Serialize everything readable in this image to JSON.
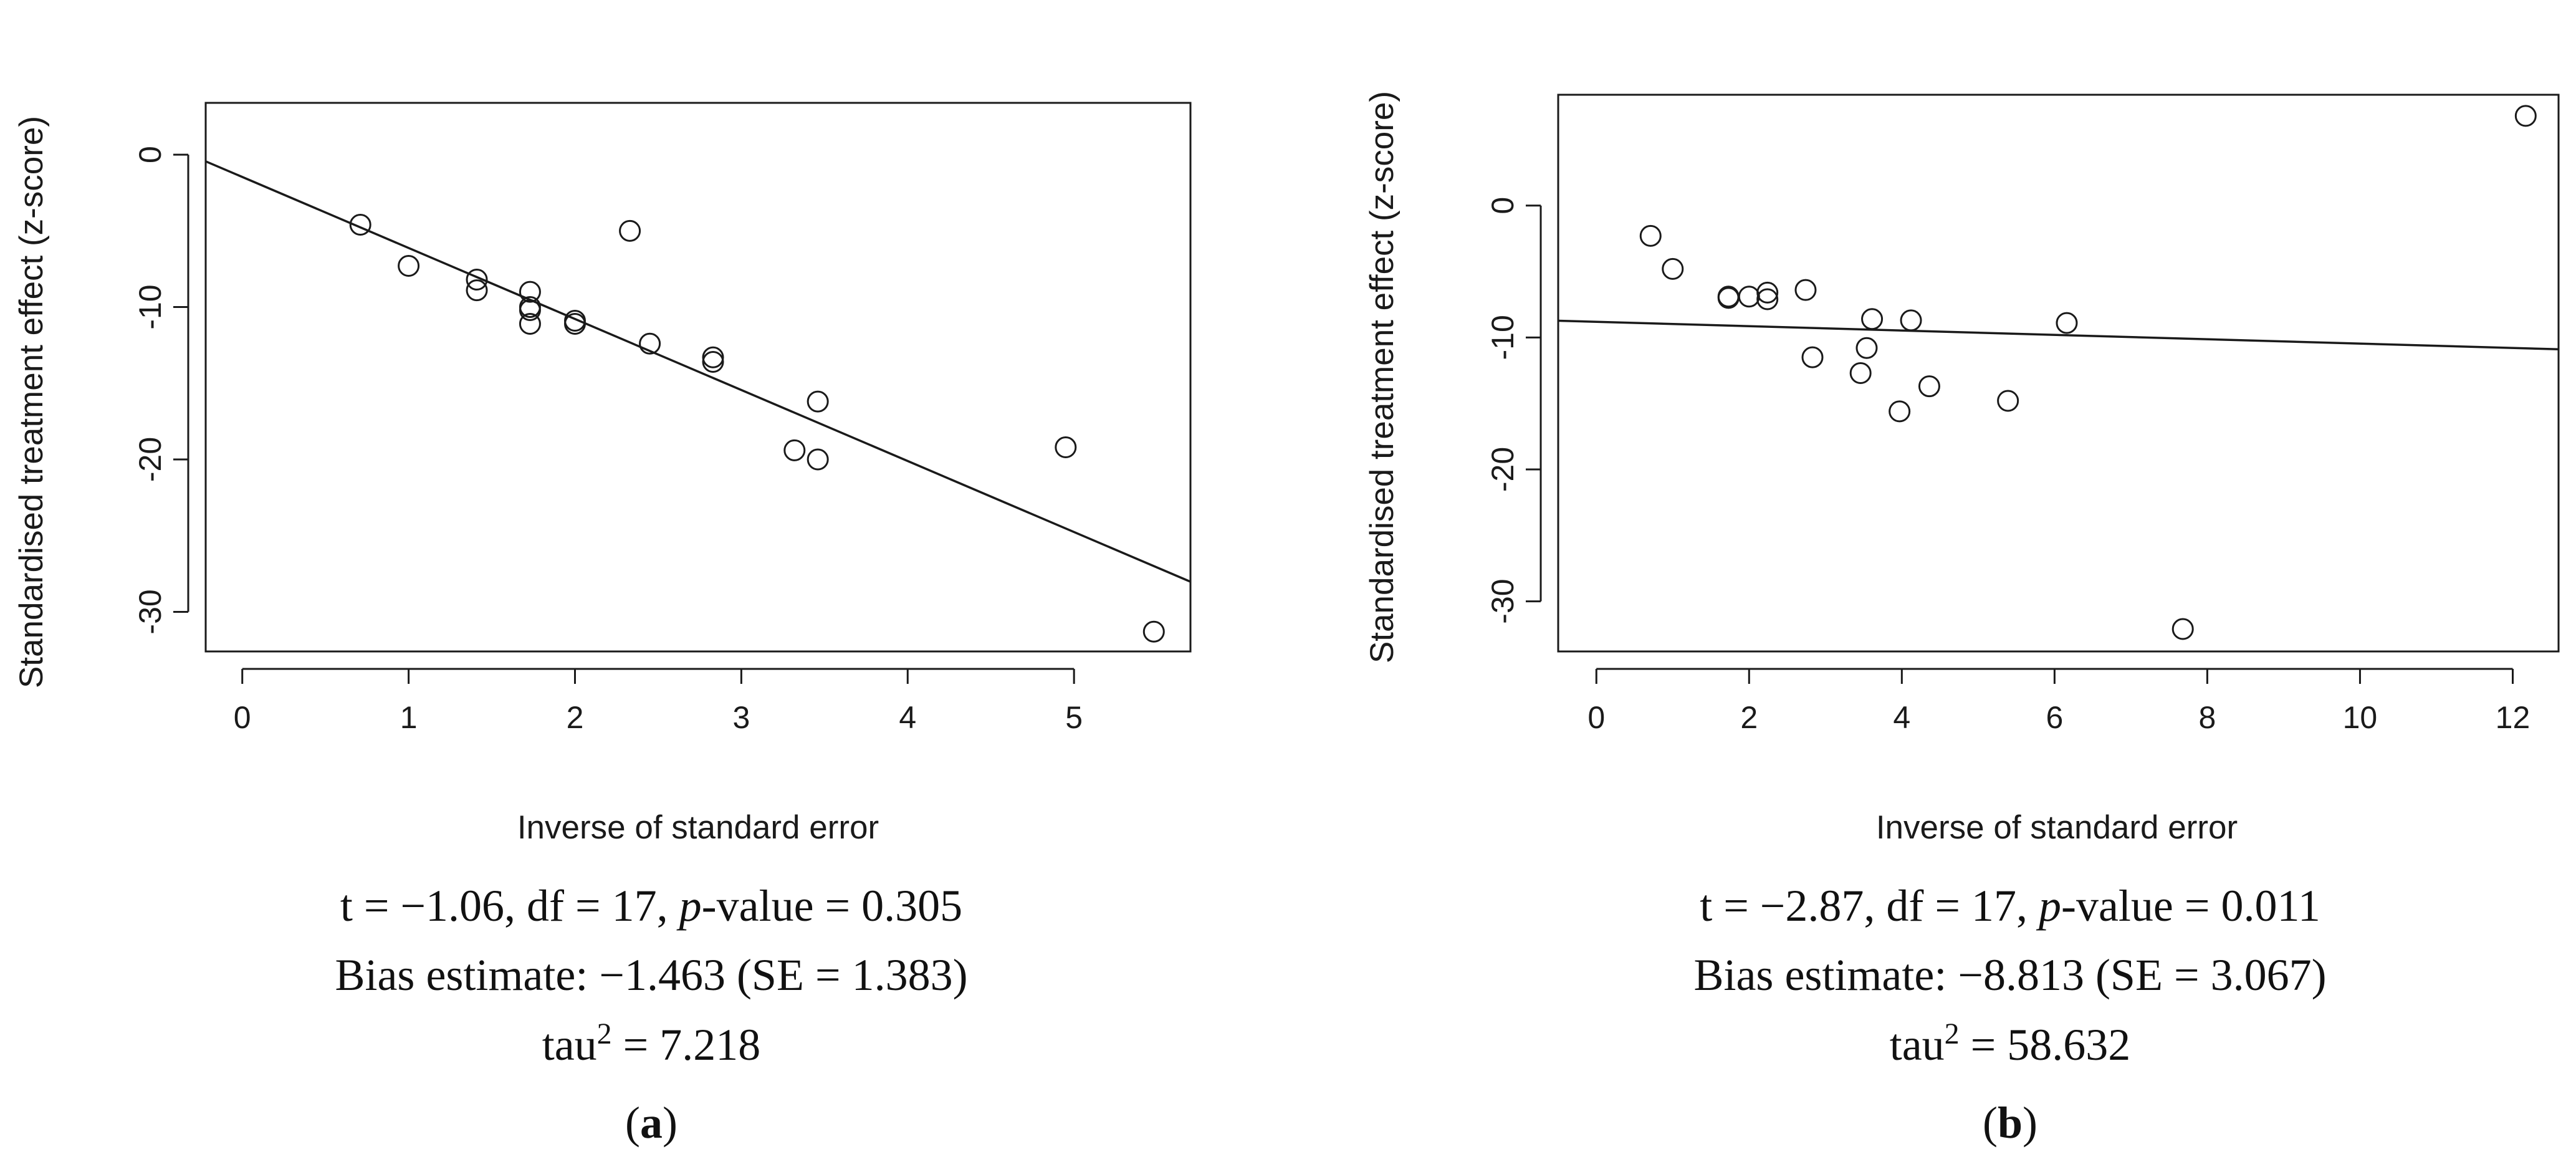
{
  "chart_data": [
    {
      "type": "scatter",
      "title": "",
      "xlabel": "Inverse of standard error",
      "ylabel": "Standardised treatment effect (z-score)",
      "xlim": [
        -0.22,
        5.7
      ],
      "ylim": [
        -32.6,
        3.4
      ],
      "x_ticks": [
        0,
        1,
        2,
        3,
        4,
        5
      ],
      "x_tick_labels": [
        "0",
        "1",
        "2",
        "3",
        "4",
        "5"
      ],
      "y_ticks": [
        0,
        -10,
        -20,
        -30
      ],
      "y_tick_labels": [
        "0",
        "-10",
        "-20",
        "-30"
      ],
      "grid": false,
      "regression_line": {
        "intercept": -1.463,
        "slope": -4.66
      },
      "points": [
        {
          "x": 0.71,
          "y": -4.6
        },
        {
          "x": 1.0,
          "y": -7.3
        },
        {
          "x": 1.41,
          "y": -8.2
        },
        {
          "x": 1.41,
          "y": -8.9
        },
        {
          "x": 1.73,
          "y": -9.0
        },
        {
          "x": 1.73,
          "y": -10.0
        },
        {
          "x": 1.73,
          "y": -10.2
        },
        {
          "x": 1.73,
          "y": -11.1
        },
        {
          "x": 2.0,
          "y": -10.9
        },
        {
          "x": 2.0,
          "y": -11.1
        },
        {
          "x": 2.33,
          "y": -5.0
        },
        {
          "x": 2.45,
          "y": -12.4
        },
        {
          "x": 2.83,
          "y": -13.3
        },
        {
          "x": 2.83,
          "y": -13.6
        },
        {
          "x": 3.32,
          "y": -19.4
        },
        {
          "x": 3.46,
          "y": -16.2
        },
        {
          "x": 3.46,
          "y": -20.0
        },
        {
          "x": 4.95,
          "y": -19.2
        },
        {
          "x": 5.48,
          "y": -31.3
        }
      ],
      "caption": {
        "line1_pre": "t = −1.06, df = 17, ",
        "line1_p": "p",
        "line1_post": "-value = 0.305",
        "line2": "Bias estimate: −1.463 (SE = 1.383)",
        "line3_pre": "tau",
        "line3_sup": "2",
        "line3_post": " = 7.218",
        "panel_label_open": "(",
        "panel_label": "a",
        "panel_label_close": ")"
      }
    },
    {
      "type": "scatter",
      "title": "",
      "xlabel": "Inverse of standard error",
      "ylabel": "Standardised treatment effect (z-score)",
      "xlim": [
        -0.5,
        12.6
      ],
      "ylim": [
        -33.8,
        8.4
      ],
      "x_ticks": [
        0,
        2,
        4,
        6,
        8,
        10,
        12
      ],
      "x_tick_labels": [
        "0",
        "2",
        "4",
        "6",
        "8",
        "10",
        "12"
      ],
      "y_ticks": [
        0,
        -10,
        -20,
        -30
      ],
      "y_tick_labels": [
        "0",
        "-10",
        "-20",
        "-30"
      ],
      "grid": false,
      "regression_line": {
        "intercept": -8.813,
        "slope": -0.165
      },
      "points": [
        {
          "x": 0.71,
          "y": -2.3
        },
        {
          "x": 1.0,
          "y": -4.8
        },
        {
          "x": 1.73,
          "y": -7.0
        },
        {
          "x": 1.73,
          "y": -6.9
        },
        {
          "x": 2.0,
          "y": -6.9
        },
        {
          "x": 2.24,
          "y": -6.6
        },
        {
          "x": 2.24,
          "y": -7.1
        },
        {
          "x": 2.74,
          "y": -6.4
        },
        {
          "x": 2.83,
          "y": -11.5
        },
        {
          "x": 3.46,
          "y": -12.7
        },
        {
          "x": 3.54,
          "y": -10.8
        },
        {
          "x": 3.61,
          "y": -8.6
        },
        {
          "x": 3.97,
          "y": -15.6
        },
        {
          "x": 4.12,
          "y": -8.7
        },
        {
          "x": 4.36,
          "y": -13.7
        },
        {
          "x": 5.39,
          "y": -14.8
        },
        {
          "x": 6.16,
          "y": -8.9
        },
        {
          "x": 7.68,
          "y": -32.1
        },
        {
          "x": 12.17,
          "y": 6.8
        }
      ],
      "caption": {
        "line1_pre": "t = −2.87, df = 17, ",
        "line1_p": "p",
        "line1_post": "-value = 0.011",
        "line2": "Bias estimate: −8.813 (SE = 3.067)",
        "line3_pre": "tau",
        "line3_sup": "2",
        "line3_post": " = 58.632",
        "panel_label_open": "(",
        "panel_label": "b",
        "panel_label_close": ")"
      }
    }
  ]
}
